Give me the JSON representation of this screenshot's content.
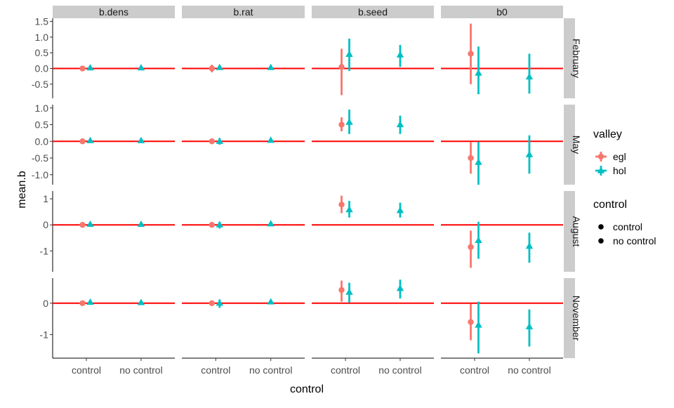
{
  "chart_data": {
    "type": "scatter",
    "subtype": "faceted point-range",
    "xlabel": "control",
    "ylabel": "mean.b",
    "x_categories": [
      "control",
      "no control"
    ],
    "col_facets": [
      "b.dens",
      "b.rat",
      "b.seed",
      "b0"
    ],
    "row_facets": [
      {
        "label": "February",
        "ylim": [
          -0.95,
          1.6
        ],
        "ticks": [
          -0.5,
          0.0,
          0.5,
          1.0,
          1.5
        ],
        "tick_labels": [
          "-0.5",
          "0.0",
          "0.5",
          "1.0",
          "1.5"
        ]
      },
      {
        "label": "May",
        "ylim": [
          -1.3,
          1.1
        ],
        "ticks": [
          -1.0,
          -0.5,
          0.0,
          0.5,
          1.0
        ],
        "tick_labels": [
          "-1.0",
          "-0.5",
          "0.0",
          "0.5",
          "1.0"
        ]
      },
      {
        "label": "August",
        "ylim": [
          -1.8,
          1.3
        ],
        "ticks": [
          -1,
          0,
          1
        ],
        "tick_labels": [
          "-1",
          "0",
          "1"
        ]
      },
      {
        "label": "November",
        "ylim": [
          -1.75,
          0.8
        ],
        "ticks": [
          -1,
          0
        ],
        "tick_labels": [
          "-1",
          "0"
        ]
      }
    ],
    "reference_line": {
      "y": 0,
      "color": "#ff0000"
    },
    "grid": false,
    "legend_position": "right",
    "legends": [
      {
        "title": "valley",
        "entries": [
          {
            "label": "egl",
            "color": "#f8766d",
            "shape": "circle"
          },
          {
            "label": "hol",
            "color": "#00bfc4",
            "shape": "triangle"
          }
        ]
      },
      {
        "title": "control",
        "entries": [
          {
            "label": "control",
            "color": "#000000",
            "shape": "circle"
          },
          {
            "label": "no control",
            "color": "#000000",
            "shape": "circle"
          }
        ]
      }
    ],
    "colors": {
      "egl": "#f8766d",
      "hol": "#00bfc4",
      "strip_bg": "#cccccc"
    },
    "points": [
      {
        "row": "February",
        "col": "b.dens",
        "x": "control",
        "valley": "egl",
        "y": 0.0,
        "ymin": -0.05,
        "ymax": 0.05
      },
      {
        "row": "February",
        "col": "b.dens",
        "x": "control",
        "valley": "hol",
        "y": 0.02,
        "ymin": -0.03,
        "ymax": 0.07
      },
      {
        "row": "February",
        "col": "b.dens",
        "x": "no control",
        "valley": "hol",
        "y": 0.02,
        "ymin": -0.03,
        "ymax": 0.07
      },
      {
        "row": "February",
        "col": "b.rat",
        "x": "control",
        "valley": "egl",
        "y": 0.0,
        "ymin": -0.12,
        "ymax": 0.12
      },
      {
        "row": "February",
        "col": "b.rat",
        "x": "control",
        "valley": "hol",
        "y": 0.03,
        "ymin": -0.03,
        "ymax": 0.09
      },
      {
        "row": "February",
        "col": "b.rat",
        "x": "no control",
        "valley": "hol",
        "y": 0.03,
        "ymin": -0.02,
        "ymax": 0.08
      },
      {
        "row": "February",
        "col": "b.seed",
        "x": "control",
        "valley": "egl",
        "y": 0.05,
        "ymin": -0.85,
        "ymax": 0.63
      },
      {
        "row": "February",
        "col": "b.seed",
        "x": "control",
        "valley": "hol",
        "y": 0.45,
        "ymin": -0.08,
        "ymax": 0.95
      },
      {
        "row": "February",
        "col": "b.seed",
        "x": "no control",
        "valley": "hol",
        "y": 0.43,
        "ymin": 0.05,
        "ymax": 0.75
      },
      {
        "row": "February",
        "col": "b0",
        "x": "control",
        "valley": "egl",
        "y": 0.47,
        "ymin": -0.5,
        "ymax": 1.43
      },
      {
        "row": "February",
        "col": "b0",
        "x": "control",
        "valley": "hol",
        "y": -0.15,
        "ymin": -0.82,
        "ymax": 0.7
      },
      {
        "row": "February",
        "col": "b0",
        "x": "no control",
        "valley": "hol",
        "y": -0.27,
        "ymin": -0.8,
        "ymax": 0.47
      },
      {
        "row": "May",
        "col": "b.dens",
        "x": "control",
        "valley": "egl",
        "y": 0.0,
        "ymin": -0.05,
        "ymax": 0.05
      },
      {
        "row": "May",
        "col": "b.dens",
        "x": "control",
        "valley": "hol",
        "y": 0.02,
        "ymin": -0.03,
        "ymax": 0.07
      },
      {
        "row": "May",
        "col": "b.dens",
        "x": "no control",
        "valley": "hol",
        "y": 0.02,
        "ymin": -0.03,
        "ymax": 0.07
      },
      {
        "row": "May",
        "col": "b.rat",
        "x": "control",
        "valley": "egl",
        "y": 0.0,
        "ymin": -0.08,
        "ymax": 0.08
      },
      {
        "row": "May",
        "col": "b.rat",
        "x": "control",
        "valley": "hol",
        "y": 0.0,
        "ymin": -0.1,
        "ymax": 0.1
      },
      {
        "row": "May",
        "col": "b.rat",
        "x": "no control",
        "valley": "hol",
        "y": 0.03,
        "ymin": -0.02,
        "ymax": 0.08
      },
      {
        "row": "May",
        "col": "b.seed",
        "x": "control",
        "valley": "egl",
        "y": 0.5,
        "ymin": 0.3,
        "ymax": 0.72
      },
      {
        "row": "May",
        "col": "b.seed",
        "x": "control",
        "valley": "hol",
        "y": 0.57,
        "ymin": 0.22,
        "ymax": 0.95
      },
      {
        "row": "May",
        "col": "b.seed",
        "x": "no control",
        "valley": "hol",
        "y": 0.5,
        "ymin": 0.22,
        "ymax": 0.77
      },
      {
        "row": "May",
        "col": "b0",
        "x": "control",
        "valley": "egl",
        "y": -0.5,
        "ymin": -0.97,
        "ymax": -0.02
      },
      {
        "row": "May",
        "col": "b0",
        "x": "control",
        "valley": "hol",
        "y": -0.63,
        "ymin": -1.3,
        "ymax": -0.02
      },
      {
        "row": "May",
        "col": "b0",
        "x": "no control",
        "valley": "hol",
        "y": -0.4,
        "ymin": -0.97,
        "ymax": 0.18
      },
      {
        "row": "August",
        "col": "b.dens",
        "x": "control",
        "valley": "egl",
        "y": 0.0,
        "ymin": -0.06,
        "ymax": 0.06
      },
      {
        "row": "August",
        "col": "b.dens",
        "x": "control",
        "valley": "hol",
        "y": 0.02,
        "ymin": -0.04,
        "ymax": 0.08
      },
      {
        "row": "August",
        "col": "b.dens",
        "x": "no control",
        "valley": "hol",
        "y": 0.02,
        "ymin": -0.04,
        "ymax": 0.08
      },
      {
        "row": "August",
        "col": "b.rat",
        "x": "control",
        "valley": "egl",
        "y": 0.0,
        "ymin": -0.1,
        "ymax": 0.1
      },
      {
        "row": "August",
        "col": "b.rat",
        "x": "control",
        "valley": "hol",
        "y": 0.0,
        "ymin": -0.14,
        "ymax": 0.12
      },
      {
        "row": "August",
        "col": "b.rat",
        "x": "no control",
        "valley": "hol",
        "y": 0.04,
        "ymin": -0.02,
        "ymax": 0.1
      },
      {
        "row": "August",
        "col": "b.seed",
        "x": "control",
        "valley": "egl",
        "y": 0.78,
        "ymin": 0.45,
        "ymax": 1.12
      },
      {
        "row": "August",
        "col": "b.seed",
        "x": "control",
        "valley": "hol",
        "y": 0.58,
        "ymin": 0.28,
        "ymax": 0.92
      },
      {
        "row": "August",
        "col": "b.seed",
        "x": "no control",
        "valley": "hol",
        "y": 0.55,
        "ymin": 0.28,
        "ymax": 0.85
      },
      {
        "row": "August",
        "col": "b0",
        "x": "control",
        "valley": "egl",
        "y": -0.85,
        "ymin": -1.65,
        "ymax": -0.22
      },
      {
        "row": "August",
        "col": "b0",
        "x": "control",
        "valley": "hol",
        "y": -0.6,
        "ymin": -1.3,
        "ymax": 0.12
      },
      {
        "row": "August",
        "col": "b0",
        "x": "no control",
        "valley": "hol",
        "y": -0.82,
        "ymin": -1.45,
        "ymax": -0.3
      },
      {
        "row": "November",
        "col": "b.dens",
        "x": "control",
        "valley": "egl",
        "y": 0.0,
        "ymin": -0.05,
        "ymax": 0.05
      },
      {
        "row": "November",
        "col": "b.dens",
        "x": "control",
        "valley": "hol",
        "y": 0.03,
        "ymin": -0.02,
        "ymax": 0.08
      },
      {
        "row": "November",
        "col": "b.dens",
        "x": "no control",
        "valley": "hol",
        "y": 0.02,
        "ymin": -0.03,
        "ymax": 0.07
      },
      {
        "row": "November",
        "col": "b.rat",
        "x": "control",
        "valley": "egl",
        "y": 0.0,
        "ymin": -0.08,
        "ymax": 0.08
      },
      {
        "row": "November",
        "col": "b.rat",
        "x": "control",
        "valley": "hol",
        "y": 0.0,
        "ymin": -0.15,
        "ymax": 0.12
      },
      {
        "row": "November",
        "col": "b.rat",
        "x": "no control",
        "valley": "hol",
        "y": 0.04,
        "ymin": -0.02,
        "ymax": 0.1
      },
      {
        "row": "November",
        "col": "b.seed",
        "x": "control",
        "valley": "egl",
        "y": 0.42,
        "ymin": 0.05,
        "ymax": 0.72
      },
      {
        "row": "November",
        "col": "b.seed",
        "x": "control",
        "valley": "hol",
        "y": 0.35,
        "ymin": 0.02,
        "ymax": 0.65
      },
      {
        "row": "November",
        "col": "b.seed",
        "x": "no control",
        "valley": "hol",
        "y": 0.47,
        "ymin": 0.15,
        "ymax": 0.75
      },
      {
        "row": "November",
        "col": "b0",
        "x": "control",
        "valley": "egl",
        "y": -0.6,
        "ymin": -1.18,
        "ymax": -0.02
      },
      {
        "row": "November",
        "col": "b0",
        "x": "control",
        "valley": "hol",
        "y": -0.7,
        "ymin": -1.6,
        "ymax": 0.05
      },
      {
        "row": "November",
        "col": "b0",
        "x": "no control",
        "valley": "hol",
        "y": -0.75,
        "ymin": -1.38,
        "ymax": -0.2
      }
    ]
  }
}
